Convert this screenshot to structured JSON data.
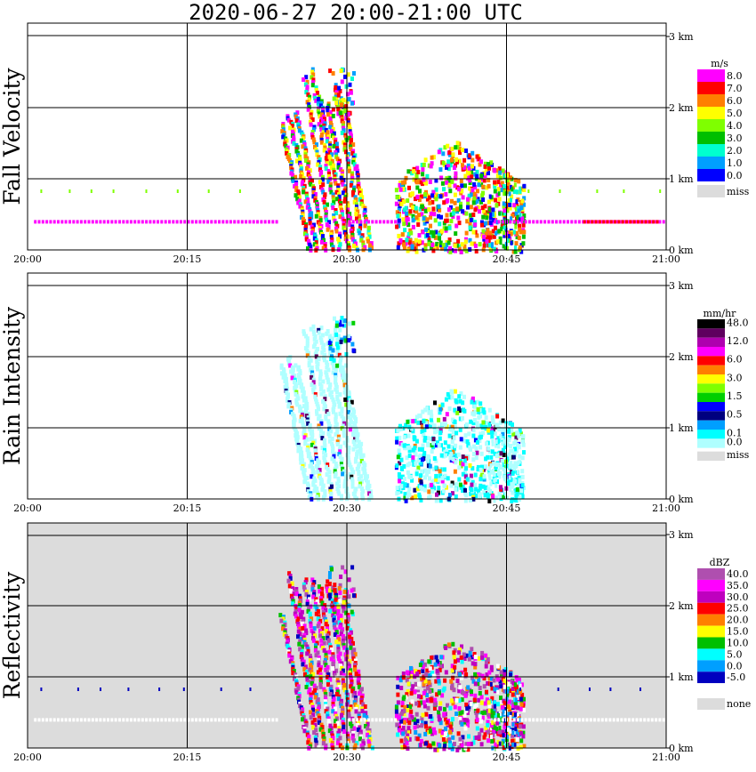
{
  "title": "2020-06-27   20:00-21:00 UTC",
  "chart_data": [
    {
      "type": "heatmap",
      "ylabel": "Fall Velocity",
      "x_ticks": [
        "20:00",
        "20:15",
        "20:30",
        "20:45",
        "21:00"
      ],
      "y_ticks": [
        "0 km",
        "1 km",
        "2 km",
        "3 km"
      ],
      "xlim": [
        "20:00",
        "21:00"
      ],
      "ylim": [
        0,
        3.2
      ],
      "grid": true,
      "background": "#ffffff",
      "legend": {
        "unit": "m/s",
        "placement": "right",
        "entries": [
          {
            "label": "8.0",
            "color": "#ff00ff"
          },
          {
            "label": "7.0",
            "color": "#ff0000"
          },
          {
            "label": "6.0",
            "color": "#ff7f00"
          },
          {
            "label": "5.0",
            "color": "#ffff00"
          },
          {
            "label": "4.0",
            "color": "#7fff00"
          },
          {
            "label": "3.0",
            "color": "#00bf00"
          },
          {
            "label": "2.0",
            "color": "#00ffcf"
          },
          {
            "label": "1.0",
            "color": "#009fff"
          },
          {
            "label": "0.0",
            "color": "#0000ff"
          },
          {
            "label": "miss",
            "color": "#dcdcdc"
          }
        ]
      }
    },
    {
      "type": "heatmap",
      "ylabel": "Rain Intensity",
      "x_ticks": [
        "20:00",
        "20:15",
        "20:30",
        "20:45",
        "21:00"
      ],
      "y_ticks": [
        "0 km",
        "1 km",
        "2 km",
        "3 km"
      ],
      "xlim": [
        "20:00",
        "21:00"
      ],
      "ylim": [
        0,
        3.2
      ],
      "grid": true,
      "background": "#ffffff",
      "legend": {
        "unit": "mm/hr",
        "placement": "right",
        "entries": [
          {
            "label": "48.0",
            "color": "#000000"
          },
          {
            "label": "",
            "color": "#5f005f"
          },
          {
            "label": "12.0",
            "color": "#af00af"
          },
          {
            "label": "",
            "color": "#ff00ff"
          },
          {
            "label": "6.0",
            "color": "#ff0000"
          },
          {
            "label": "",
            "color": "#ff7f00"
          },
          {
            "label": "3.0",
            "color": "#ffff00"
          },
          {
            "label": "",
            "color": "#7fff00"
          },
          {
            "label": "1.5",
            "color": "#00cf00"
          },
          {
            "label": "",
            "color": "#0000ff"
          },
          {
            "label": "0.5",
            "color": "#00007f"
          },
          {
            "label": "",
            "color": "#009fff"
          },
          {
            "label": "0.1",
            "color": "#00ffff"
          },
          {
            "label": "0.0",
            "color": "#afffff"
          },
          {
            "label": "miss",
            "color": "#dcdcdc"
          }
        ]
      }
    },
    {
      "type": "heatmap",
      "ylabel": "Reflectivity",
      "x_ticks": [
        "20:00",
        "20:15",
        "20:30",
        "20:45",
        "21:00"
      ],
      "y_ticks": [
        "0 km",
        "1 km",
        "2 km",
        "3 km"
      ],
      "xlim": [
        "20:00",
        "21:00"
      ],
      "ylim": [
        0,
        3.2
      ],
      "grid": true,
      "background": "#dcdcdc",
      "legend": {
        "unit": "dBZ",
        "placement": "right",
        "entries": [
          {
            "label": "40.0",
            "color": "#af4faf"
          },
          {
            "label": "35.0",
            "color": "#ff00ff"
          },
          {
            "label": "30.0",
            "color": "#bf00bf"
          },
          {
            "label": "25.0",
            "color": "#ff0000"
          },
          {
            "label": "20.0",
            "color": "#ff7f00"
          },
          {
            "label": "15.0",
            "color": "#ffff00"
          },
          {
            "label": "10.0",
            "color": "#00bf00"
          },
          {
            "label": "5.0",
            "color": "#00ffff"
          },
          {
            "label": "0.0",
            "color": "#009fff"
          },
          {
            "label": "-5.0",
            "color": "#0000bf"
          },
          {
            "label": "",
            "color": "#ffffff"
          },
          {
            "label": "none",
            "color": "#dcdcdc"
          }
        ]
      }
    }
  ]
}
